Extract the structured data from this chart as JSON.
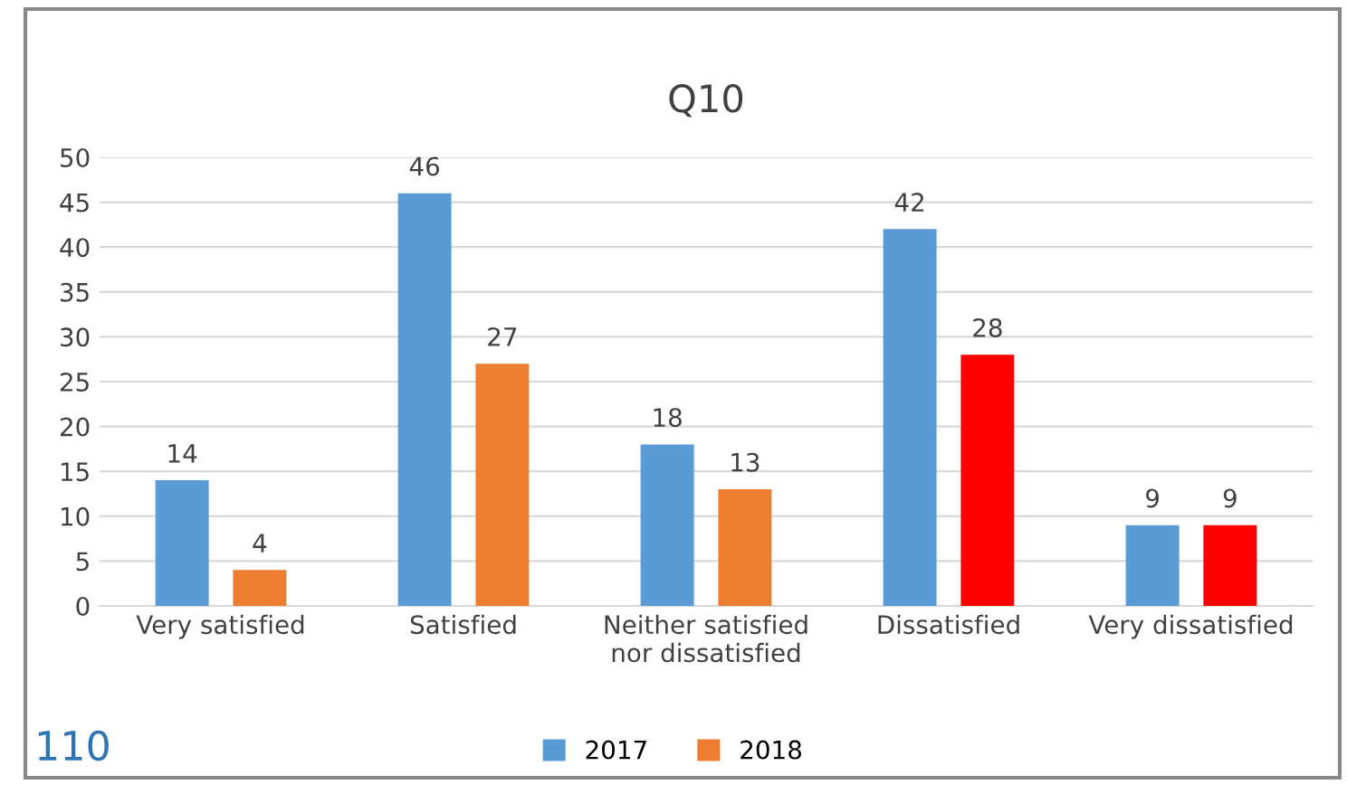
{
  "chart_data": {
    "type": "bar",
    "title": "Q10",
    "categories": [
      "Very satisfied",
      "Satisfied",
      "Neither satisfied\nnor dissatisfied",
      "Dissatisfied",
      "Very dissatisfied"
    ],
    "series": [
      {
        "name": "2017",
        "color": "#5b9bd5",
        "values": [
          14,
          46,
          18,
          42,
          9
        ]
      },
      {
        "name": "2018",
        "color": "#ed7d31",
        "colors": [
          "#ed7d31",
          "#ed7d31",
          "#ed7d31",
          "#ff0000",
          "#ff0000"
        ],
        "values": [
          4,
          27,
          13,
          28,
          9
        ]
      }
    ],
    "ylim": [
      0,
      50
    ],
    "yticks": [
      0,
      5,
      10,
      15,
      20,
      25,
      30,
      35,
      40,
      45,
      50
    ],
    "grid": "y",
    "legend": "bottom",
    "data_labels": true,
    "annotations": [
      "110"
    ]
  }
}
